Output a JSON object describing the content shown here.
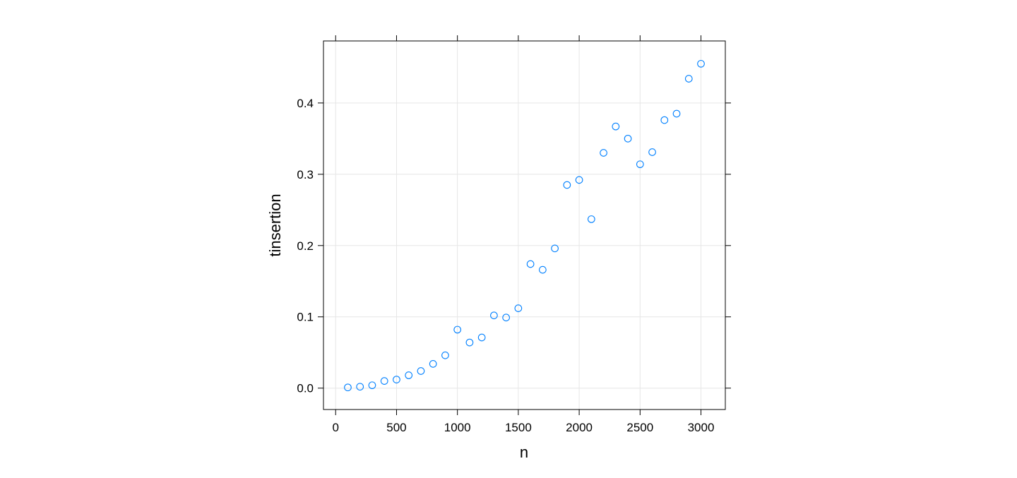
{
  "chart_data": {
    "type": "scatter",
    "title": "",
    "xlabel": "n",
    "ylabel": "tinsertion",
    "xlim": [
      -100,
      3200
    ],
    "ylim": [
      -0.03,
      0.487
    ],
    "xticks": [
      0,
      500,
      1000,
      1500,
      2000,
      2500,
      3000
    ],
    "xtick_labels": [
      "0",
      "500",
      "1000",
      "1500",
      "2000",
      "2500",
      "3000"
    ],
    "yticks": [
      0.0,
      0.1,
      0.2,
      0.3,
      0.4
    ],
    "ytick_labels": [
      "0.0",
      "0.1",
      "0.2",
      "0.3",
      "0.4"
    ],
    "grid": true,
    "marker_color": "#0080ff",
    "x": [
      100,
      200,
      300,
      400,
      500,
      600,
      700,
      800,
      900,
      1000,
      1100,
      1200,
      1300,
      1400,
      1500,
      1600,
      1700,
      1800,
      1900,
      2000,
      2100,
      2200,
      2300,
      2400,
      2500,
      2600,
      2700,
      2800,
      2900,
      3000
    ],
    "y": [
      0.001,
      0.002,
      0.004,
      0.01,
      0.012,
      0.018,
      0.024,
      0.034,
      0.046,
      0.082,
      0.064,
      0.071,
      0.102,
      0.099,
      0.112,
      0.174,
      0.166,
      0.196,
      0.285,
      0.292,
      0.237,
      0.33,
      0.367,
      0.35,
      0.314,
      0.331,
      0.376,
      0.385,
      0.434,
      0.455
    ]
  }
}
